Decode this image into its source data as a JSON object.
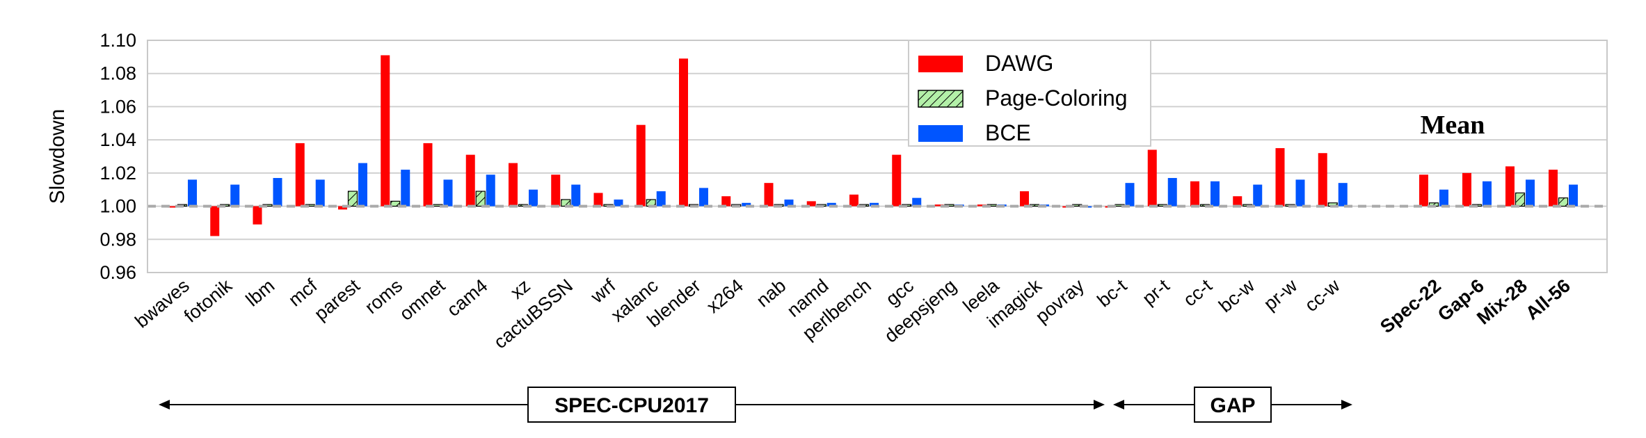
{
  "chart_data": {
    "type": "bar",
    "ylabel": "Slowdown",
    "xlabel": "",
    "ylim": [
      0.96,
      1.1
    ],
    "yticks": [
      "0.96",
      "0.98",
      "1.00",
      "1.02",
      "1.04",
      "1.06",
      "1.08",
      "1.10"
    ],
    "baseline": 1.0,
    "grid": true,
    "legend_position": "top-center",
    "categories": [
      "bwaves",
      "fotonik",
      "lbm",
      "mcf",
      "parest",
      "roms",
      "omnet",
      "cam4",
      "xz",
      "cactuBSSN",
      "wrf",
      "xalanc",
      "blender",
      "x264",
      "nab",
      "namd",
      "perlbench",
      "gcc",
      "deepsjeng",
      "leela",
      "imagick",
      "povray",
      "bc-t",
      "pr-t",
      "cc-t",
      "bc-w",
      "pr-w",
      "cc-w",
      "Spec-22",
      "Gap-6",
      "Mix-28",
      "All-56"
    ],
    "bold_categories": [
      "Spec-22",
      "Gap-6",
      "Mix-28",
      "All-56"
    ],
    "series": [
      {
        "name": "DAWG",
        "color": "#ff0000",
        "pattern": "solid",
        "values": [
          1.0,
          0.982,
          0.989,
          1.038,
          0.998,
          1.091,
          1.038,
          1.031,
          1.026,
          1.019,
          1.008,
          1.049,
          1.089,
          1.006,
          1.014,
          1.003,
          1.007,
          1.031,
          1.001,
          1.001,
          1.009,
          1.0,
          1.0,
          1.034,
          1.015,
          1.006,
          1.035,
          1.032,
          1.019,
          1.02,
          1.024,
          1.022
        ]
      },
      {
        "name": "Page-Coloring",
        "color": "#b3f0a8",
        "pattern": "hatched",
        "values": [
          1.001,
          1.001,
          1.001,
          1.001,
          1.009,
          1.003,
          1.001,
          1.009,
          1.001,
          1.004,
          1.001,
          1.004,
          1.001,
          1.001,
          1.001,
          1.001,
          1.001,
          1.001,
          1.001,
          1.001,
          1.001,
          1.001,
          1.001,
          1.001,
          1.001,
          1.001,
          1.001,
          1.002,
          1.002,
          1.001,
          1.008,
          1.005
        ]
      },
      {
        "name": "BCE",
        "color": "#0055ff",
        "pattern": "solid",
        "values": [
          1.016,
          1.013,
          1.017,
          1.016,
          1.026,
          1.022,
          1.016,
          1.019,
          1.01,
          1.013,
          1.004,
          1.009,
          1.011,
          1.002,
          1.004,
          1.002,
          1.002,
          1.005,
          1.001,
          1.001,
          1.001,
          1.0,
          1.014,
          1.017,
          1.015,
          1.013,
          1.016,
          1.014,
          1.01,
          1.015,
          1.016,
          1.013
        ]
      }
    ],
    "annotations": {
      "mean_title": "Mean",
      "groups": [
        {
          "label": "SPEC-CPU2017",
          "from": "bwaves",
          "to": "povray"
        },
        {
          "label": "GAP",
          "from": "bc-t",
          "to": "cc-w"
        }
      ]
    }
  }
}
